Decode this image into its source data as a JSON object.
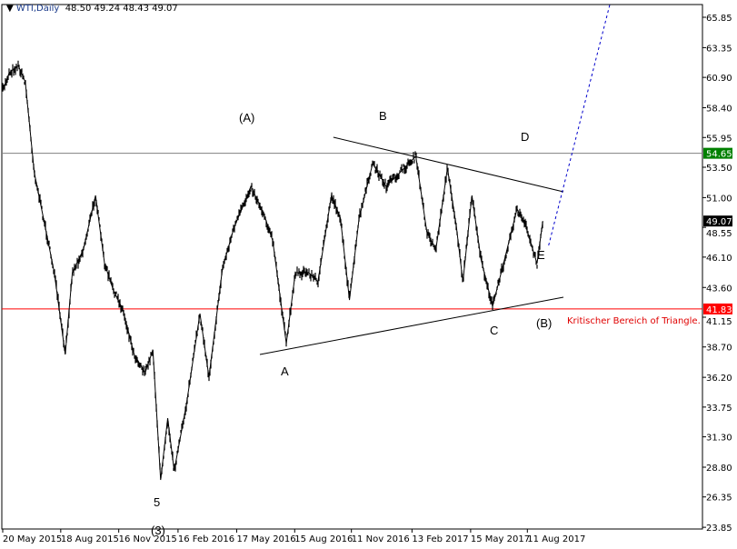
{
  "header": {
    "symbol": "WTI,Daily",
    "ohlc": "48.50 49.24 48.43 49.07"
  },
  "chart_data": {
    "type": "line",
    "title": "WTI,Daily",
    "ylim": [
      23.85,
      67.0
    ],
    "y_ticks": [
      "65.85",
      "63.35",
      "60.90",
      "58.40",
      "55.95",
      "53.50",
      "51.00",
      "48.55",
      "46.10",
      "43.60",
      "41.15",
      "38.70",
      "36.20",
      "33.75",
      "31.30",
      "28.80",
      "26.35",
      "23.85"
    ],
    "x_ticks": [
      [
        "2015-05-20",
        "20 May 2015"
      ],
      [
        "2015-08-18",
        "18 Aug 2015"
      ],
      [
        "2015-11-16",
        "16 Nov 2015"
      ],
      [
        "2016-02-16",
        "16 Feb 2016"
      ],
      [
        "2016-05-17",
        "17 May 2016"
      ],
      [
        "2016-08-15",
        "15 Aug 2016"
      ],
      [
        "2016-11-11",
        "11 Nov 2016"
      ],
      [
        "2017-02-13",
        "13 Feb 2017"
      ],
      [
        "2017-05-15",
        "15 May 2017"
      ],
      [
        "2017-08-11",
        "11 Aug 2017"
      ]
    ],
    "series": [
      {
        "values": [
          [
            "2015-05-20",
            59.79
          ],
          [
            "2015-05-30",
            61.28
          ],
          [
            "2015-06-13",
            61.88
          ],
          [
            "2015-06-24",
            60.53
          ],
          [
            "2015-07-08",
            53.05
          ],
          [
            "2015-07-25",
            48.56
          ],
          [
            "2015-08-08",
            44.82
          ],
          [
            "2015-08-25",
            38.08
          ],
          [
            "2015-09-05",
            44.82
          ],
          [
            "2015-09-22",
            46.69
          ],
          [
            "2015-10-11",
            51.18
          ],
          [
            "2015-10-25",
            45.57
          ],
          [
            "2015-11-08",
            43.32
          ],
          [
            "2015-11-22",
            41.82
          ],
          [
            "2015-12-10",
            38.08
          ],
          [
            "2015-12-27",
            36.58
          ],
          [
            "2016-01-08",
            38.46
          ],
          [
            "2016-01-20",
            27.75
          ],
          [
            "2016-01-31",
            32.84
          ],
          [
            "2016-02-10",
            28.5
          ],
          [
            "2016-02-29",
            33.96
          ],
          [
            "2016-03-21",
            41.45
          ],
          [
            "2016-04-04",
            36.21
          ],
          [
            "2016-04-25",
            45.19
          ],
          [
            "2016-05-13",
            48.56
          ],
          [
            "2016-05-28",
            50.43
          ],
          [
            "2016-06-08",
            51.93
          ],
          [
            "2016-06-28",
            49.68
          ],
          [
            "2016-07-12",
            47.44
          ],
          [
            "2016-08-02",
            38.98
          ],
          [
            "2016-08-16",
            44.82
          ],
          [
            "2016-09-06",
            44.82
          ],
          [
            "2016-09-20",
            44.07
          ],
          [
            "2016-10-11",
            51.18
          ],
          [
            "2016-10-25",
            49.31
          ],
          [
            "2016-11-08",
            42.57
          ],
          [
            "2016-11-23",
            49.31
          ],
          [
            "2016-12-14",
            53.8
          ],
          [
            "2017-01-04",
            51.93
          ],
          [
            "2017-01-25",
            53.05
          ],
          [
            "2017-02-19",
            54.4
          ],
          [
            "2017-03-08",
            48.18
          ],
          [
            "2017-03-22",
            46.69
          ],
          [
            "2017-04-09",
            53.43
          ],
          [
            "2017-04-23",
            48.56
          ],
          [
            "2017-05-03",
            44.07
          ],
          [
            "2017-05-17",
            51.18
          ],
          [
            "2017-05-31",
            45.94
          ],
          [
            "2017-06-18",
            42.05
          ],
          [
            "2017-07-05",
            45.57
          ],
          [
            "2017-07-26",
            50.06
          ],
          [
            "2017-08-09",
            48.56
          ],
          [
            "2017-08-26",
            45.57
          ],
          [
            "2017-09-04",
            49.07
          ]
        ]
      }
    ],
    "hlines": [
      {
        "price": 54.65,
        "label": "54.65",
        "color": "#808080",
        "label_bg": "#008000"
      },
      {
        "price": 41.83,
        "label": "41.83",
        "color": "#ff0000",
        "label_bg": "#ff0000"
      }
    ],
    "current_price": {
      "price": 49.07,
      "label": "49.07",
      "label_bg": "#000000"
    },
    "trendlines": [
      {
        "from": [
          "2016-10-14",
          55.97
        ],
        "to": [
          "2017-10-06",
          51.48
        ],
        "color": "#000000",
        "style": "solid"
      },
      {
        "from": [
          "2016-06-22",
          38.08
        ],
        "to": [
          "2017-10-06",
          42.8
        ],
        "color": "#000000",
        "style": "solid"
      },
      {
        "from": [
          "2017-09-13",
          47.06
        ],
        "to": [
          "2017-12-18",
          67.12
        ],
        "color": "#0000cc",
        "style": "dotted"
      }
    ],
    "annotations": {
      "wA_big": "(A)",
      "wB": "B",
      "wD": "D",
      "wE": "E",
      "wC": "C",
      "wB_big": "(B)",
      "wA": "A",
      "w5": "5",
      "w3": "(3)",
      "critical": "Kritischer Bereich of Triangle."
    }
  }
}
